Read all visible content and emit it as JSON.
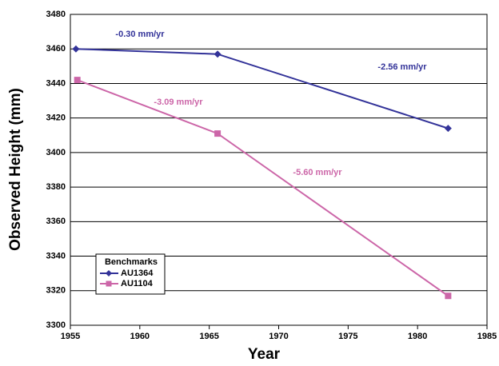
{
  "chart_data": {
    "type": "line",
    "x_label": "Year",
    "y_label": "Observed Height (mm)",
    "legend_title": "Benchmarks",
    "legend": "lower left",
    "grid": true,
    "xlim": [
      1955,
      1985
    ],
    "xticks": [
      1955,
      1960,
      1965,
      1970,
      1975,
      1980,
      1985
    ],
    "ylim": [
      3300,
      3480
    ],
    "yticks": [
      3300,
      3320,
      3340,
      3360,
      3380,
      3400,
      3420,
      3440,
      3460,
      3480
    ],
    "series": [
      {
        "name": "AU1364",
        "color": "#333399",
        "marker": "diamond",
        "x": [
          1955.4,
          1965.6,
          1982.2
        ],
        "values": [
          3460,
          3457,
          3414
        ]
      },
      {
        "name": "AU1104",
        "color": "#cc66a8",
        "marker": "square",
        "x": [
          1955.5,
          1965.6,
          1982.2
        ],
        "values": [
          3442,
          3411,
          3317
        ]
      }
    ],
    "annotations": [
      "-0.30 mm/yr",
      "-2.56 mm/yr",
      "-3.09 mm/yr",
      "-5.60 mm/yr"
    ]
  }
}
